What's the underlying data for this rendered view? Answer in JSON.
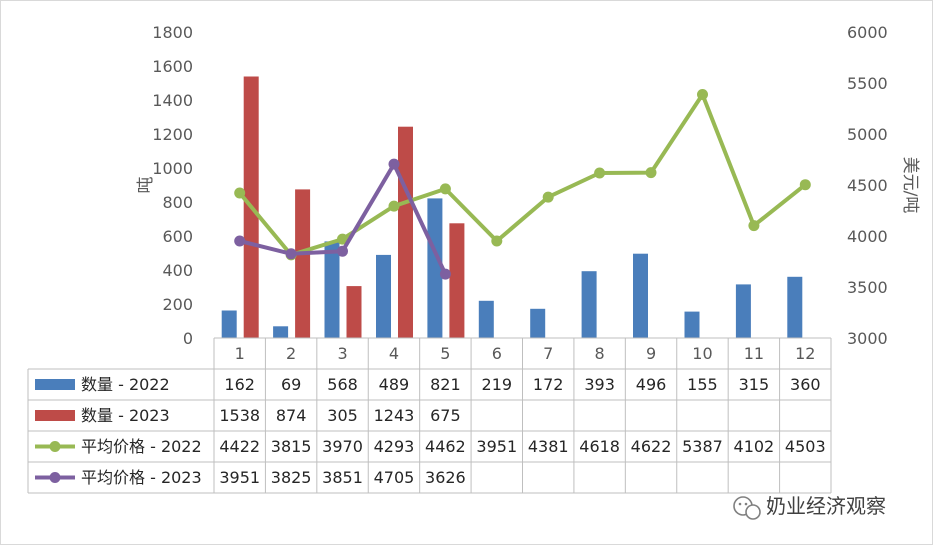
{
  "chart_data": {
    "type": "bar",
    "categories": [
      "1",
      "2",
      "3",
      "4",
      "5",
      "6",
      "7",
      "8",
      "9",
      "10",
      "11",
      "12"
    ],
    "ylabel_left": "吨",
    "ylabel_right": "美元/吨",
    "ylim_left": [
      0,
      1800
    ],
    "ylim_right": [
      3000,
      6000
    ],
    "yticks_left": [
      "0",
      "200",
      "400",
      "600",
      "800",
      "1000",
      "1200",
      "1400",
      "1600",
      "1800"
    ],
    "yticks_right": [
      "3000",
      "3500",
      "4000",
      "4500",
      "5000",
      "5500",
      "6000"
    ],
    "grid": false,
    "legend": "data-table",
    "series": [
      {
        "name": "数量 - 2022",
        "type": "bar",
        "axis": "left",
        "color": "#4a7ebb",
        "values": [
          162,
          69,
          568,
          489,
          821,
          219,
          172,
          393,
          496,
          155,
          315,
          360
        ]
      },
      {
        "name": "数量 - 2023",
        "type": "bar",
        "axis": "left",
        "color": "#be4b48",
        "values": [
          1538,
          874,
          305,
          1243,
          675,
          null,
          null,
          null,
          null,
          null,
          null,
          null
        ]
      },
      {
        "name": "平均价格 - 2022",
        "type": "line",
        "axis": "right",
        "color": "#98b954",
        "values": [
          4422,
          3815,
          3970,
          4293,
          4462,
          3951,
          4381,
          4618,
          4622,
          5387,
          4102,
          4503
        ]
      },
      {
        "name": "平均价格 - 2023",
        "type": "line",
        "axis": "right",
        "color": "#7d60a0",
        "values": [
          3951,
          3825,
          3851,
          4705,
          3626,
          null,
          null,
          null,
          null,
          null,
          null,
          null
        ]
      }
    ]
  },
  "watermark": {
    "text": "奶业经济观察",
    "icon": "wechat-icon"
  }
}
